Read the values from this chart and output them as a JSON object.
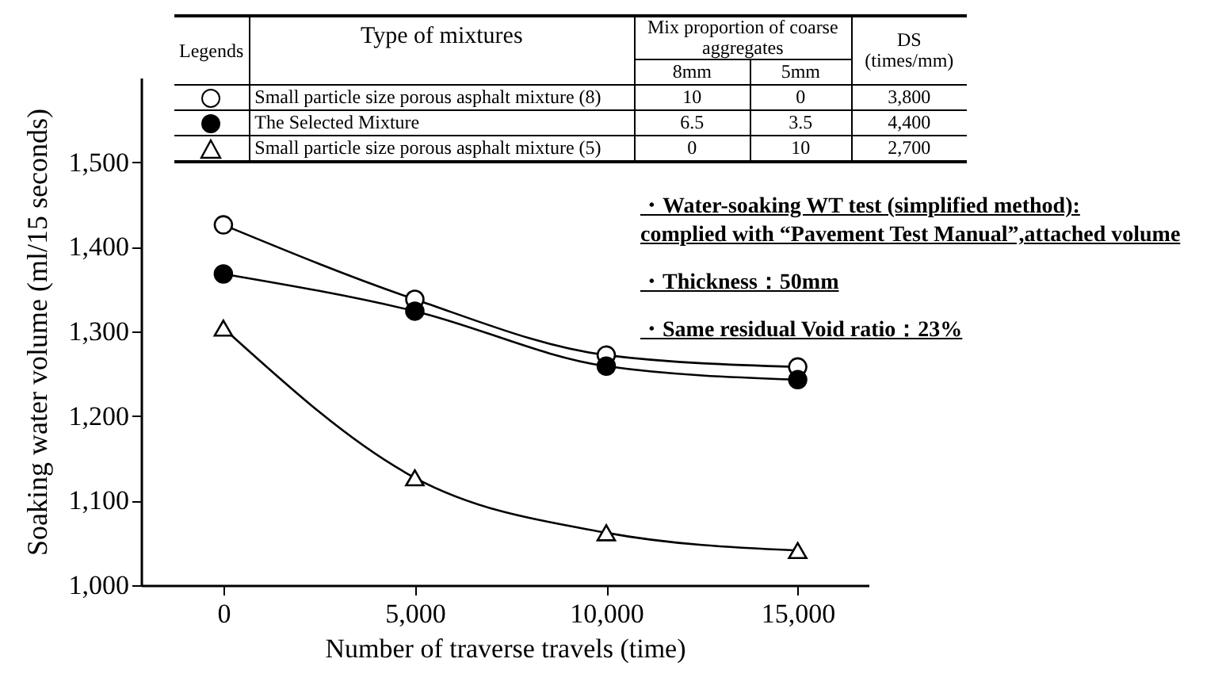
{
  "chart_data": {
    "type": "line",
    "xlabel": "Number of traverse travels (time)",
    "ylabel": "Soaking water volume (ml/15 seconds)",
    "x": [
      0,
      5000,
      10000,
      15000
    ],
    "series": [
      {
        "name": "Small particle size porous asphalt mixture (8)",
        "color": "#000000",
        "marker": "circle",
        "colors": [
          "#ffffff",
          "#ffffff",
          "#ffffff",
          "#ffffff"
        ],
        "values": [
          1426,
          1338,
          1272,
          1258
        ]
      },
      {
        "name": "The Selected Mixture",
        "color": "#000000",
        "marker": "circle",
        "colors": [
          "#000000",
          "#000000",
          "#000000",
          "#000000"
        ],
        "values": [
          1368,
          1324,
          1259,
          1243
        ]
      },
      {
        "name": "Small particle size porous asphalt mixture (5)",
        "color": "#000000",
        "marker": "triangle",
        "colors": [
          "#ffffff",
          "#ffffff",
          "#ffffff",
          "#ffffff"
        ],
        "values": [
          1304,
          1127,
          1062,
          1041
        ]
      }
    ],
    "xlim": [
      -2150,
      16850
    ],
    "xticks": [
      {
        "value": 0,
        "label": "0"
      },
      {
        "value": 5000,
        "label": "5,000"
      },
      {
        "value": 10000,
        "label": "10,000"
      },
      {
        "value": 15000,
        "label": "15,000"
      }
    ],
    "ylim": [
      1000,
      1600
    ],
    "yticks": [
      {
        "value": 1000,
        "label": "1,000"
      },
      {
        "value": 1100,
        "label": "1,100"
      },
      {
        "value": 1200,
        "label": "1,200"
      },
      {
        "value": 1300,
        "label": "1,300"
      },
      {
        "value": 1400,
        "label": "1,400"
      },
      {
        "value": 1500,
        "label": "1,500"
      }
    ],
    "legend": "top",
    "annotations": [
      "Legends",
      "Type of mixtures",
      "Mix proportion of coarse aggregates",
      "8mm",
      "5mm",
      "DS (times/mm)",
      "10",
      "0",
      "3,800",
      "6.5",
      "3.5",
      "4,400",
      "0",
      "10",
      "2,700",
      "・Water-soaking WT test (simplified method):",
      "complied with “Pavement Test Manual”,attached volume",
      "・Thickness：50mm",
      "・Same residual Void ratio：23%"
    ]
  }
}
